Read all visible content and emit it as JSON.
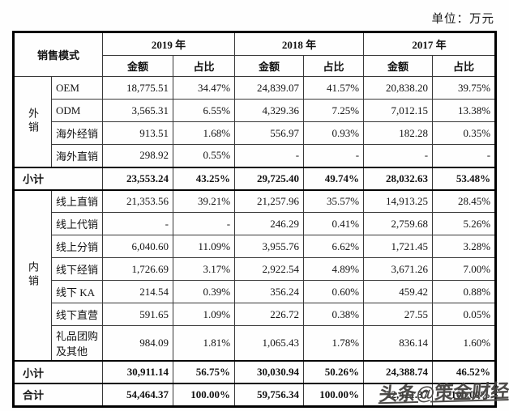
{
  "page": {
    "unit_label": "单位：万元",
    "watermark": "头条@策金财经"
  },
  "table": {
    "header": {
      "mode_label": "销售模式",
      "years": [
        "2019 年",
        "2018 年",
        "2017 年"
      ],
      "amount_label": "金额",
      "ratio_label": "占比"
    },
    "rows": [
      {
        "kind": "data",
        "label": "OEM",
        "group": {
          "id": "export",
          "label": "外销",
          "span": 4
        },
        "values": [
          "18,775.51",
          "34.47%",
          "24,839.07",
          "41.57%",
          "20,838.20",
          "39.75%"
        ]
      },
      {
        "kind": "data",
        "label": "ODM",
        "values": [
          "3,565.31",
          "6.55%",
          "4,329.36",
          "7.25%",
          "7,012.15",
          "13.38%"
        ]
      },
      {
        "kind": "data",
        "label": "海外经销",
        "values": [
          "913.51",
          "1.68%",
          "556.97",
          "0.93%",
          "182.28",
          "0.35%"
        ]
      },
      {
        "kind": "data",
        "label": "海外直销",
        "values": [
          "298.92",
          "0.55%",
          "-",
          "-",
          "-",
          "-"
        ]
      },
      {
        "kind": "subtotal",
        "label": "小计",
        "values": [
          "23,553.24",
          "43.25%",
          "29,725.40",
          "49.74%",
          "28,032.63",
          "53.48%"
        ]
      },
      {
        "kind": "data",
        "label": "线上直销",
        "group": {
          "id": "domestic",
          "label": "内销",
          "span": 7
        },
        "values": [
          "21,353.56",
          "39.21%",
          "21,257.96",
          "35.57%",
          "14,913.25",
          "28.45%"
        ]
      },
      {
        "kind": "data",
        "label": "线上代销",
        "values": [
          "-",
          "-",
          "246.29",
          "0.41%",
          "2,759.68",
          "5.26%"
        ]
      },
      {
        "kind": "data",
        "label": "线上分销",
        "values": [
          "6,040.60",
          "11.09%",
          "3,955.76",
          "6.62%",
          "1,721.45",
          "3.28%"
        ]
      },
      {
        "kind": "data",
        "label": "线下经销",
        "values": [
          "1,726.69",
          "3.17%",
          "2,922.54",
          "4.89%",
          "3,671.26",
          "7.00%"
        ]
      },
      {
        "kind": "data",
        "label": "线下 KA",
        "values": [
          "214.54",
          "0.39%",
          "356.24",
          "0.60%",
          "459.42",
          "0.88%"
        ]
      },
      {
        "kind": "data",
        "label": "线下直营",
        "values": [
          "591.65",
          "1.09%",
          "226.72",
          "0.38%",
          "27.55",
          "0.05%"
        ]
      },
      {
        "kind": "data",
        "label": "礼品团购及其他",
        "values": [
          "984.09",
          "1.81%",
          "1,065.43",
          "1.78%",
          "836.14",
          "1.60%"
        ]
      },
      {
        "kind": "subtotal",
        "label": "小计",
        "values": [
          "30,911.14",
          "56.75%",
          "30,030.94",
          "50.26%",
          "24,388.74",
          "46.52%"
        ]
      },
      {
        "kind": "total",
        "label": "合计",
        "values": [
          "54,464.37",
          "100.00%",
          "59,756.34",
          "100.00%",
          "52,421.37",
          "100.00%"
        ]
      }
    ]
  }
}
